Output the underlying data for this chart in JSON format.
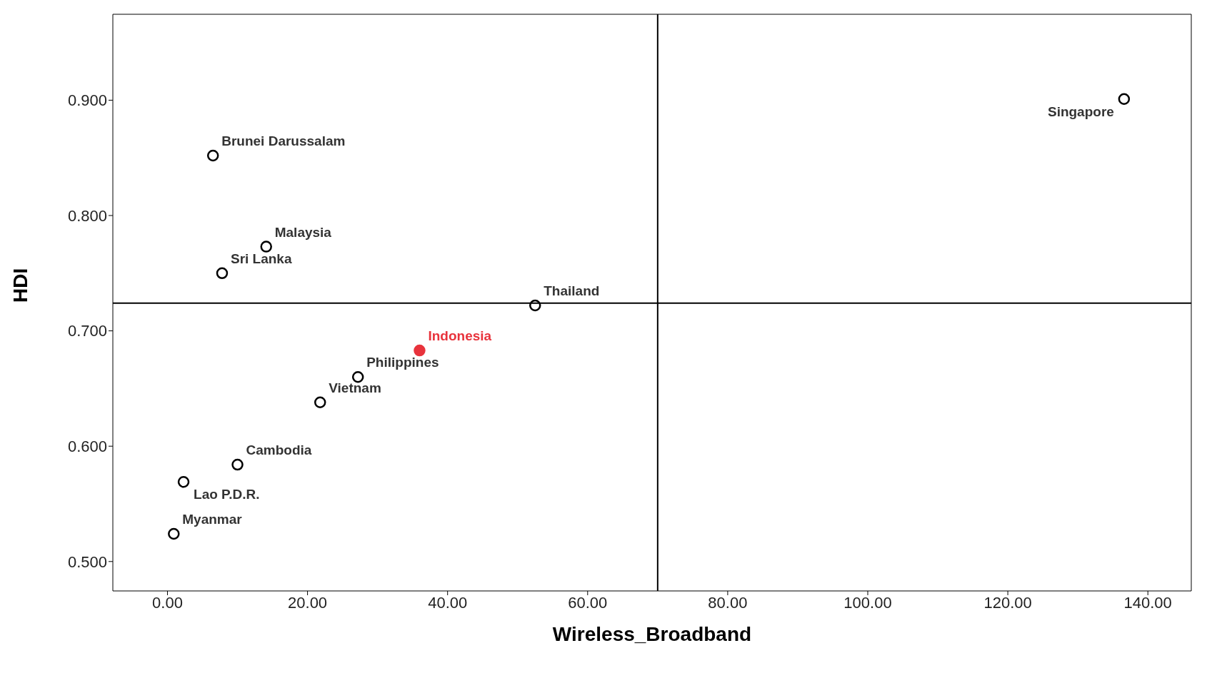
{
  "chart_data": {
    "type": "scatter",
    "xlabel": "Wireless_Broadband",
    "ylabel": "HDI",
    "xlim": [
      -7.8,
      146.2
    ],
    "ylim": [
      0.4745,
      0.9745
    ],
    "xticks": [
      {
        "value": 0,
        "label": "0.00"
      },
      {
        "value": 20,
        "label": "20.00"
      },
      {
        "value": 40,
        "label": "40.00"
      },
      {
        "value": 60,
        "label": "60.00"
      },
      {
        "value": 80,
        "label": "80.00"
      },
      {
        "value": 100,
        "label": "100.00"
      },
      {
        "value": 120,
        "label": "120.00"
      },
      {
        "value": 140,
        "label": "140.00"
      }
    ],
    "yticks": [
      {
        "value": 0.5,
        "label": "0.500"
      },
      {
        "value": 0.6,
        "label": "0.600"
      },
      {
        "value": 0.7,
        "label": "0.700"
      },
      {
        "value": 0.8,
        "label": "0.800"
      },
      {
        "value": 0.9,
        "label": "0.900"
      }
    ],
    "grid": false,
    "legend": false,
    "marker": "circle",
    "ref_lines": [
      {
        "axis": "x",
        "value": 70,
        "color": "#000000"
      },
      {
        "axis": "y",
        "value": 0.724,
        "color": "#000000"
      }
    ],
    "series": [
      {
        "name": "Singapore",
        "color": "#000000",
        "x": [
          136.6
        ],
        "values": [
          0.901
        ]
      },
      {
        "name": "Brunei Darussalam",
        "color": "#000000",
        "x": [
          6.5
        ],
        "values": [
          0.852
        ]
      },
      {
        "name": "Malaysia",
        "color": "#000000",
        "x": [
          14.1
        ],
        "values": [
          0.773
        ]
      },
      {
        "name": "Sri Lanka",
        "color": "#000000",
        "x": [
          7.8
        ],
        "values": [
          0.75
        ]
      },
      {
        "name": "Thailand",
        "color": "#000000",
        "x": [
          52.5
        ],
        "values": [
          0.722
        ]
      },
      {
        "name": "Indonesia",
        "color": "#e8333c",
        "x": [
          36.0
        ],
        "values": [
          0.683
        ]
      },
      {
        "name": "Philippines",
        "color": "#000000",
        "x": [
          27.2
        ],
        "values": [
          0.66
        ]
      },
      {
        "name": "Vietnam",
        "color": "#000000",
        "x": [
          21.8
        ],
        "values": [
          0.638
        ]
      },
      {
        "name": "Cambodia",
        "color": "#000000",
        "x": [
          10.0
        ],
        "values": [
          0.584
        ]
      },
      {
        "name": "Lao P.D.R.",
        "color": "#000000",
        "x": [
          2.3
        ],
        "values": [
          0.569
        ]
      },
      {
        "name": "Myanmar",
        "color": "#000000",
        "x": [
          0.9
        ],
        "values": [
          0.524
        ]
      }
    ]
  }
}
